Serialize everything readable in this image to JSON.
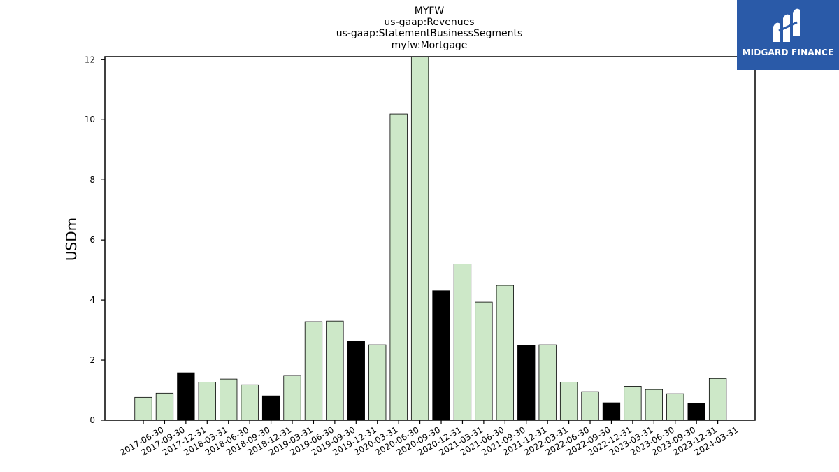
{
  "colors": {
    "highlight": "#000000",
    "bar": "#cde8c8",
    "edge": "#000000",
    "logo_bg": "#2a5aa8"
  },
  "logo": {
    "text": "MIDGARD FINANCE",
    "icon": "midgard-logo-icon"
  },
  "chart_data": {
    "type": "bar",
    "title_lines": [
      "MYFW",
      "us-gaap:Revenues",
      "us-gaap:StatementBusinessSegments",
      "myfw:Mortgage"
    ],
    "xlabel": "",
    "ylabel": "USDm",
    "ylim": [
      0,
      12.1
    ],
    "yticks": [
      0,
      2,
      4,
      6,
      8,
      10,
      12
    ],
    "grid": false,
    "categories": [
      "2017-06-30",
      "2017-09-30",
      "2017-12-31",
      "2018-03-31",
      "2018-06-30",
      "2018-09-30",
      "2018-12-31",
      "2019-03-31",
      "2019-06-30",
      "2019-09-30",
      "2019-12-31",
      "2020-03-31",
      "2020-06-30",
      "2020-09-30",
      "2020-12-31",
      "2021-03-31",
      "2021-06-30",
      "2021-09-30",
      "2021-12-31",
      "2022-03-31",
      "2022-06-30",
      "2022-09-30",
      "2022-12-31",
      "2023-03-31",
      "2023-06-30",
      "2023-09-30",
      "2023-12-31",
      "2024-03-31"
    ],
    "values": [
      0.76,
      0.9,
      1.58,
      1.27,
      1.37,
      1.18,
      0.81,
      1.49,
      3.28,
      3.3,
      2.62,
      2.51,
      10.19,
      12.2,
      4.31,
      5.2,
      3.93,
      4.49,
      2.49,
      2.51,
      1.27,
      0.95,
      0.58,
      1.13,
      1.02,
      0.88,
      0.55,
      1.39
    ],
    "highlighted": [
      false,
      false,
      true,
      false,
      false,
      false,
      true,
      false,
      false,
      false,
      true,
      false,
      false,
      false,
      true,
      false,
      false,
      false,
      true,
      false,
      false,
      false,
      true,
      false,
      false,
      false,
      true,
      false
    ]
  }
}
